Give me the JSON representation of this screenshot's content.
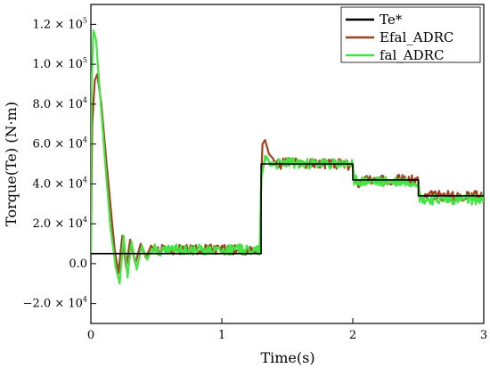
{
  "chart_data": {
    "type": "line",
    "xlabel": "Time(s)",
    "ylabel": "Torque(Te) (N·m)",
    "xlim": [
      0,
      3
    ],
    "ylim": [
      -30000,
      130000
    ],
    "grid": false,
    "legend_position": "top-right",
    "x_ticks": [
      {
        "value": 0,
        "label": "0"
      },
      {
        "value": 1,
        "label": "1"
      },
      {
        "value": 2,
        "label": "2"
      },
      {
        "value": 3,
        "label": "3"
      }
    ],
    "y_ticks": [
      {
        "value": -20000,
        "mantissa": "−2.0",
        "label": "−2.0 × 10^4"
      },
      {
        "value": 0,
        "mantissa": "0.0",
        "label": "0.0"
      },
      {
        "value": 20000,
        "mantissa": "2.0",
        "label": "2.0 × 10^4"
      },
      {
        "value": 40000,
        "mantissa": "4.0",
        "label": "4.0 × 10^4"
      },
      {
        "value": 60000,
        "mantissa": "6.0",
        "label": "6.0 × 10^4"
      },
      {
        "value": 80000,
        "mantissa": "8.0",
        "label": "8.0 × 10^4"
      },
      {
        "value": 100000,
        "mantissa": "1.0",
        "label": "1.0 × 10^5"
      },
      {
        "value": 120000,
        "mantissa": "1.2",
        "label": "1.2 × 10^5"
      }
    ],
    "series": [
      {
        "name": "Te*",
        "color": "#000000",
        "x": [
          0,
          0.18,
          0.18,
          1.3,
          1.3,
          2.0,
          2.0,
          2.5,
          2.5,
          3.0
        ],
        "y": [
          5000,
          5000,
          5000,
          5000,
          50000,
          50000,
          42000,
          42000,
          34000,
          34000
        ]
      },
      {
        "name": "Efal_ADRC",
        "color": "#a0401e",
        "noise": 2500,
        "x": [
          0,
          0.01,
          0.03,
          0.05,
          0.08,
          0.12,
          0.16,
          0.18,
          0.21,
          0.24,
          0.27,
          0.3,
          0.34,
          0.38,
          0.42,
          0.46,
          0.5,
          0.55,
          0.6,
          0.7,
          0.9,
          1.1,
          1.29,
          1.3,
          1.31,
          1.33,
          1.36,
          1.4,
          1.45,
          1.5,
          1.6,
          1.8,
          1.9,
          2.0,
          2.01,
          2.03,
          2.1,
          2.3,
          2.5,
          2.51,
          2.53,
          2.6,
          2.8,
          3.0
        ],
        "y": [
          5000,
          70000,
          92000,
          95000,
          80000,
          50000,
          22000,
          8000,
          -5000,
          14000,
          -2000,
          12000,
          0,
          10000,
          3000,
          9000,
          6000,
          8000,
          7000,
          7000,
          7000,
          7000,
          7000,
          38000,
          60000,
          62000,
          55000,
          52000,
          50000,
          51000,
          50000,
          50000,
          50000,
          49000,
          42000,
          40000,
          42000,
          42000,
          42000,
          35000,
          33000,
          34000,
          34000,
          34000
        ]
      },
      {
        "name": "fal_ADRC",
        "color": "#44e444",
        "noise": 2600,
        "x": [
          0,
          0.005,
          0.02,
          0.04,
          0.07,
          0.11,
          0.15,
          0.19,
          0.22,
          0.25,
          0.28,
          0.31,
          0.35,
          0.39,
          0.43,
          0.47,
          0.52,
          0.6,
          0.7,
          0.9,
          1.1,
          1.29,
          1.3,
          1.33,
          1.37,
          1.42,
          1.5,
          1.6,
          1.8,
          1.9,
          2.0,
          2.01,
          2.05,
          2.3,
          2.5,
          2.51,
          2.55,
          2.8,
          3.0
        ],
        "y": [
          5000,
          90000,
          117000,
          112000,
          85000,
          50000,
          18000,
          -2000,
          -10000,
          14000,
          -7000,
          11000,
          -3000,
          9000,
          2000,
          8000,
          6000,
          7000,
          7000,
          7000,
          7000,
          7000,
          42000,
          53000,
          51000,
          50000,
          51000,
          50000,
          50000,
          50000,
          50000,
          42000,
          41000,
          41000,
          41000,
          33000,
          32000,
          32000,
          32000
        ]
      }
    ]
  }
}
